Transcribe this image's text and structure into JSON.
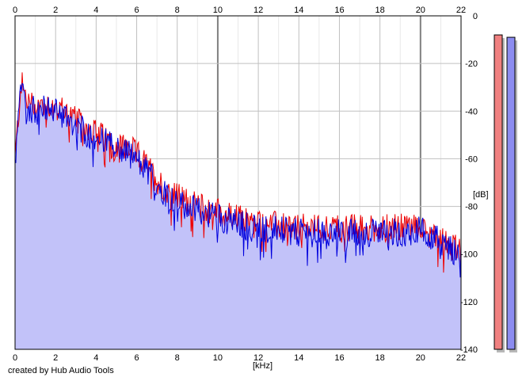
{
  "window": {
    "credit": "created by Hub Audio Tools"
  },
  "colors": {
    "plot_bg": "#ffffff",
    "fill": "#c2c2f9",
    "grid": "#c0c0c0",
    "grid_major": "#808080",
    "left_channel": "#ee0000",
    "right_channel": "#0000dd",
    "meter_left": "#f08080",
    "meter_right": "#8c8cf0"
  },
  "chart_data": {
    "type": "line",
    "title": "",
    "xlabel": "[kHz]",
    "ylabel": "[dB]",
    "xlim": [
      0,
      22
    ],
    "ylim": [
      -140,
      0
    ],
    "x_ticks": [
      "0",
      "2",
      "4",
      "6",
      "8",
      "10",
      "12",
      "14",
      "16",
      "18",
      "20",
      "22"
    ],
    "x_ticks_top": [
      "0",
      "2",
      "4",
      "6",
      "8",
      "10",
      "12",
      "14",
      "16",
      "18",
      "20",
      "22"
    ],
    "y_ticks": [
      "0",
      "-20",
      "-40",
      "-60",
      "-80",
      "-100",
      "-120",
      "-140"
    ],
    "grid": true,
    "envelope_khz": [
      0,
      0.3,
      0.6,
      1,
      1.5,
      2,
      2.5,
      3,
      3.5,
      4,
      4.5,
      5,
      5.5,
      6,
      6.5,
      7,
      7.5,
      8,
      8.5,
      9,
      9.5,
      10,
      10.5,
      11,
      11.5,
      12,
      13,
      14,
      15,
      16,
      17,
      18,
      19,
      20,
      20.5,
      21,
      21.5,
      22
    ],
    "series": [
      {
        "channel": "left",
        "values_db": [
          -60,
          -28,
          -36,
          -38,
          -37,
          -38,
          -40,
          -44,
          -47,
          -49,
          -52,
          -54,
          -55,
          -58,
          -63,
          -69,
          -73,
          -76,
          -78,
          -80,
          -81,
          -82,
          -84,
          -85,
          -86,
          -87,
          -88,
          -89,
          -89,
          -89,
          -89,
          -89,
          -89,
          -88,
          -90,
          -93,
          -96,
          -99
        ]
      },
      {
        "channel": "right",
        "values_db": [
          -62,
          -30,
          -38,
          -40,
          -39,
          -40,
          -42,
          -46,
          -49,
          -51,
          -53,
          -56,
          -57,
          -60,
          -65,
          -71,
          -75,
          -78,
          -80,
          -82,
          -83,
          -84,
          -86,
          -87,
          -88,
          -89,
          -90,
          -91,
          -91,
          -91,
          -91,
          -91,
          -91,
          -90,
          -92,
          -95,
          -98,
          -100
        ]
      }
    ]
  },
  "meters": {
    "left_level_db": -8,
    "right_level_db": -9,
    "range_db": [
      -140,
      0
    ]
  }
}
